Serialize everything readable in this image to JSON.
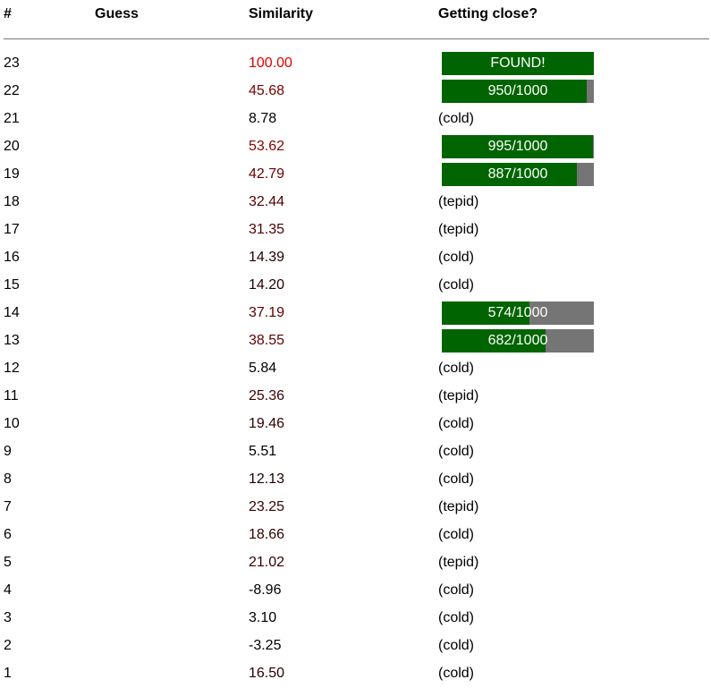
{
  "header": {
    "num": "#",
    "guess": "Guess",
    "similarity": "Similarity",
    "close": "Getting close?"
  },
  "colors": {
    "bar_fill": "#006400",
    "bar_track": "#757575",
    "found_similarity": "#e00000",
    "warm_similarity": "#5a0000"
  },
  "rows": [
    {
      "num": "23",
      "guess": "",
      "similarity": "100.00",
      "sim_color": "#e00000",
      "close": "FOUND!",
      "bar": true,
      "progress": 1.0
    },
    {
      "num": "22",
      "guess": "",
      "similarity": "45.68",
      "sim_color": "#7a0000",
      "close": "950/1000",
      "bar": true,
      "progress": 0.95
    },
    {
      "num": "21",
      "guess": "",
      "similarity": "8.78",
      "sim_color": "#000000",
      "close": "(cold)",
      "bar": false
    },
    {
      "num": "20",
      "guess": "",
      "similarity": "53.62",
      "sim_color": "#870000",
      "close": "995/1000",
      "bar": true,
      "progress": 0.995
    },
    {
      "num": "19",
      "guess": "",
      "similarity": "42.79",
      "sim_color": "#6d0000",
      "close": "887/1000",
      "bar": true,
      "progress": 0.887
    },
    {
      "num": "18",
      "guess": "",
      "similarity": "32.44",
      "sim_color": "#520000",
      "close": "(tepid)",
      "bar": false
    },
    {
      "num": "17",
      "guess": "",
      "similarity": "31.35",
      "sim_color": "#4f0000",
      "close": "(tepid)",
      "bar": false
    },
    {
      "num": "16",
      "guess": "",
      "similarity": "14.39",
      "sim_color": "#240000",
      "close": "(cold)",
      "bar": false
    },
    {
      "num": "15",
      "guess": "",
      "similarity": "14.20",
      "sim_color": "#240000",
      "close": "(cold)",
      "bar": false
    },
    {
      "num": "14",
      "guess": "",
      "similarity": "37.19",
      "sim_color": "#5e0000",
      "close": "574/1000",
      "bar": true,
      "progress": 0.574
    },
    {
      "num": "13",
      "guess": "",
      "similarity": "38.55",
      "sim_color": "#620000",
      "close": "682/1000",
      "bar": true,
      "progress": 0.682
    },
    {
      "num": "12",
      "guess": "",
      "similarity": "5.84",
      "sim_color": "#000000",
      "close": "(cold)",
      "bar": false
    },
    {
      "num": "11",
      "guess": "",
      "similarity": "25.36",
      "sim_color": "#400000",
      "close": "(tepid)",
      "bar": false
    },
    {
      "num": "10",
      "guess": "",
      "similarity": "19.46",
      "sim_color": "#310000",
      "close": "(cold)",
      "bar": false
    },
    {
      "num": "9",
      "guess": "",
      "similarity": "5.51",
      "sim_color": "#000000",
      "close": "(cold)",
      "bar": false
    },
    {
      "num": "8",
      "guess": "",
      "similarity": "12.13",
      "sim_color": "#1e0000",
      "close": "(cold)",
      "bar": false
    },
    {
      "num": "7",
      "guess": "",
      "similarity": "23.25",
      "sim_color": "#3b0000",
      "close": "(tepid)",
      "bar": false
    },
    {
      "num": "6",
      "guess": "",
      "similarity": "18.66",
      "sim_color": "#2f0000",
      "close": "(cold)",
      "bar": false
    },
    {
      "num": "5",
      "guess": "",
      "similarity": "21.02",
      "sim_color": "#350000",
      "close": "(tepid)",
      "bar": false
    },
    {
      "num": "4",
      "guess": "",
      "similarity": "-8.96",
      "sim_color": "#000000",
      "close": "(cold)",
      "bar": false
    },
    {
      "num": "3",
      "guess": "",
      "similarity": "3.10",
      "sim_color": "#000000",
      "close": "(cold)",
      "bar": false
    },
    {
      "num": "2",
      "guess": "",
      "similarity": "-3.25",
      "sim_color": "#000000",
      "close": "(cold)",
      "bar": false
    },
    {
      "num": "1",
      "guess": "",
      "similarity": "16.50",
      "sim_color": "#290000",
      "close": "(cold)",
      "bar": false
    }
  ]
}
